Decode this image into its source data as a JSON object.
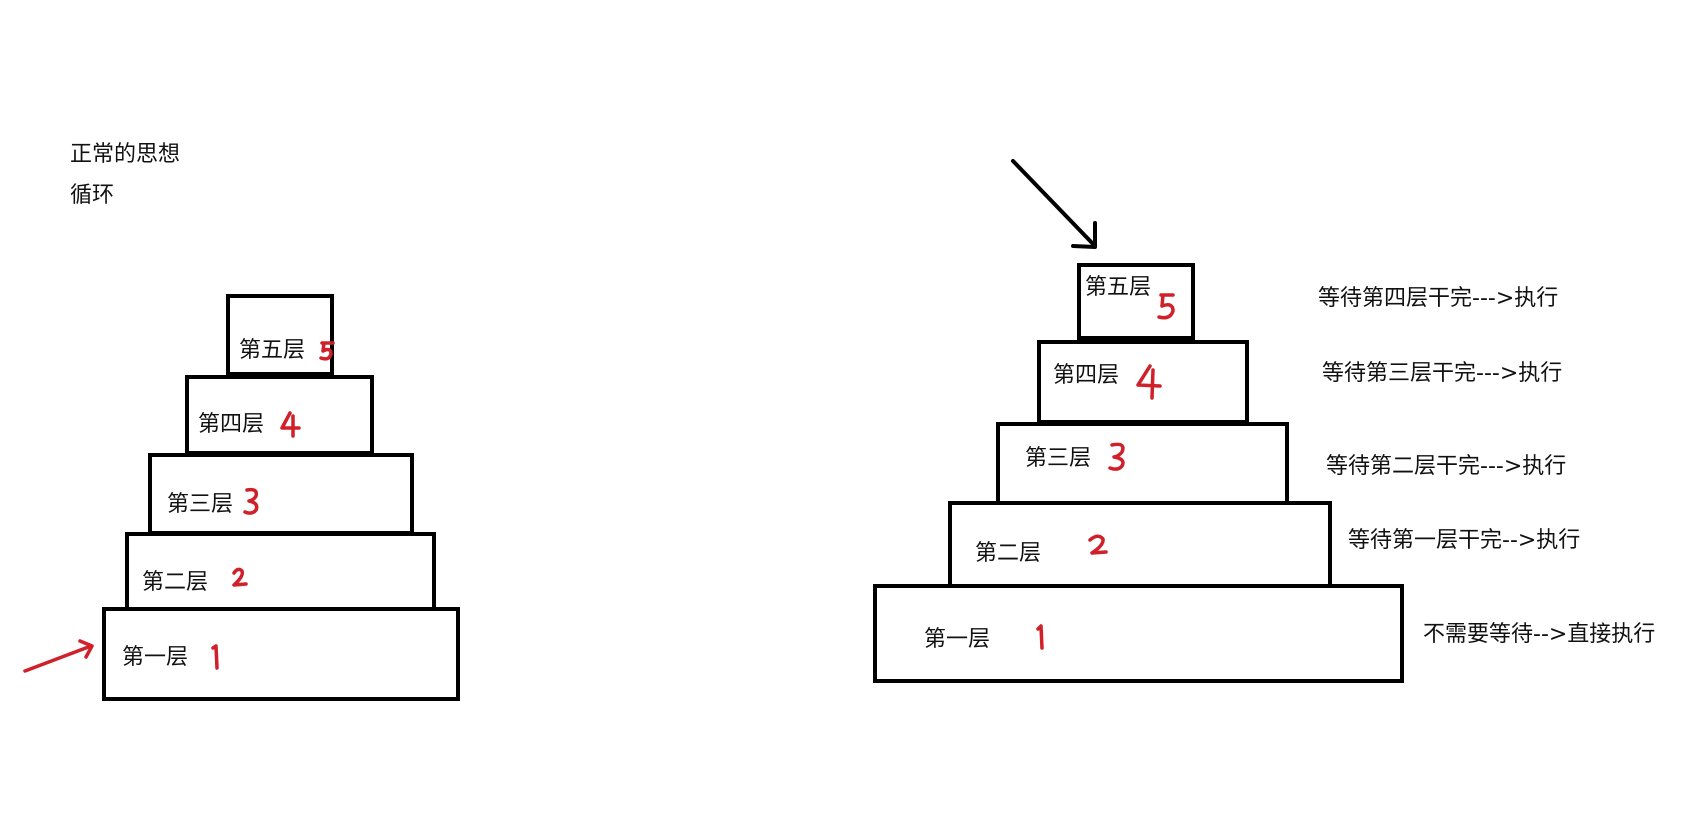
{
  "left_notes": {
    "line1": "正常的思想",
    "line2": "循环"
  },
  "left_pyramid": {
    "layers": [
      {
        "label": "第一层",
        "number": "1"
      },
      {
        "label": "第二层",
        "number": "2"
      },
      {
        "label": "第三层",
        "number": "3"
      },
      {
        "label": "第四层",
        "number": "4"
      },
      {
        "label": "第五层",
        "number": "5"
      }
    ]
  },
  "right_pyramid": {
    "layers": [
      {
        "label": "第一层",
        "number": "1",
        "note": "不需要等待-->直接执行"
      },
      {
        "label": "第二层",
        "number": "2",
        "note": "等待第一层干完-->执行"
      },
      {
        "label": "第三层",
        "number": "3",
        "note": "等待第二层干完--->执行"
      },
      {
        "label": "第四层",
        "number": "4",
        "note": "等待第三层干完--->执行"
      },
      {
        "label": "第五层",
        "number": "5",
        "note": "等待第四层干完--->执行"
      }
    ]
  },
  "colors": {
    "ink": "#000000",
    "number_ink": "#d0202a",
    "background": "#ffffff"
  },
  "icons": {
    "left_arrow": "red-pointer-arrow-icon",
    "right_arrow": "black-pointer-arrow-icon"
  }
}
